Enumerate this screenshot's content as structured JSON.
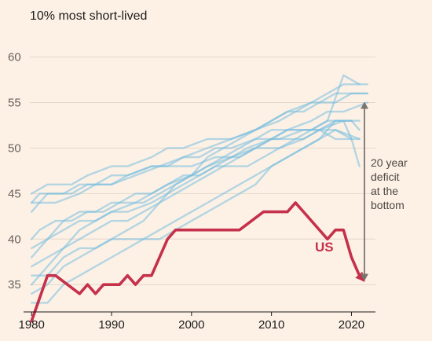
{
  "colors": {
    "background": "#fdf1e6",
    "us": "#c5304a",
    "peers": "#79bedf",
    "bracket": "#7a7470"
  },
  "chart_data": {
    "type": "line",
    "title": "",
    "subtitle": "10% most short-lived",
    "xlabel": "",
    "ylabel": "",
    "xlim": [
      1979,
      2023
    ],
    "ylim": [
      32,
      61
    ],
    "x_ticks": [
      1980,
      1990,
      2000,
      2010,
      2020
    ],
    "y_ticks": [
      35,
      40,
      45,
      50,
      55,
      60
    ],
    "grid": true,
    "annotation": {
      "text": "20 year\ndeficit\nat the\nbottom",
      "from_y": 35.5,
      "to_y": 55
    },
    "series": [
      {
        "name": "US",
        "highlight": true,
        "points": [
          [
            1980,
            31
          ],
          [
            1982,
            36
          ],
          [
            1983,
            36
          ],
          [
            1986,
            34
          ],
          [
            1987,
            35
          ],
          [
            1988,
            34
          ],
          [
            1989,
            35
          ],
          [
            1991,
            35
          ],
          [
            1992,
            36
          ],
          [
            1993,
            35
          ],
          [
            1994,
            36
          ],
          [
            1995,
            36
          ],
          [
            1997,
            40
          ],
          [
            1998,
            41
          ],
          [
            2006,
            41
          ],
          [
            2009,
            43
          ],
          [
            2012,
            43
          ],
          [
            2013,
            44
          ],
          [
            2017,
            40
          ],
          [
            2018,
            41
          ],
          [
            2019,
            41
          ],
          [
            2020,
            38
          ],
          [
            2021,
            36
          ],
          [
            2021.5,
            35.5
          ]
        ]
      },
      {
        "name": "",
        "points": [
          [
            1980,
            43
          ],
          [
            1982,
            45
          ],
          [
            1984,
            45
          ],
          [
            1986,
            46
          ],
          [
            1988,
            46
          ],
          [
            1990,
            47
          ],
          [
            1992,
            47
          ],
          [
            1995,
            48
          ],
          [
            1997,
            48
          ],
          [
            1999,
            49
          ],
          [
            2001,
            49
          ],
          [
            2003,
            50
          ],
          [
            2005,
            50
          ],
          [
            2008,
            51
          ],
          [
            2011,
            51
          ],
          [
            2014,
            52
          ],
          [
            2016,
            52
          ],
          [
            2018,
            51
          ],
          [
            2021,
            51
          ]
        ]
      },
      {
        "name": "",
        "points": [
          [
            1980,
            44
          ],
          [
            1981,
            45
          ],
          [
            1983,
            45
          ],
          [
            1985,
            45
          ],
          [
            1987,
            46
          ],
          [
            1990,
            46
          ],
          [
            1992,
            47
          ],
          [
            1995,
            48
          ],
          [
            1998,
            48
          ],
          [
            2000,
            48
          ],
          [
            2003,
            49
          ],
          [
            2006,
            49
          ],
          [
            2008,
            50
          ],
          [
            2011,
            50
          ],
          [
            2014,
            51
          ],
          [
            2016,
            52
          ],
          [
            2019,
            53
          ],
          [
            2020,
            53
          ],
          [
            2021,
            52
          ]
        ]
      },
      {
        "name": "",
        "points": [
          [
            1980,
            45
          ],
          [
            1982,
            46
          ],
          [
            1985,
            46
          ],
          [
            1987,
            47
          ],
          [
            1990,
            48
          ],
          [
            1992,
            48
          ],
          [
            1995,
            49
          ],
          [
            1997,
            50
          ],
          [
            1999,
            50
          ],
          [
            2002,
            51
          ],
          [
            2005,
            51
          ],
          [
            2008,
            52
          ],
          [
            2011,
            53
          ],
          [
            2013,
            54
          ],
          [
            2015,
            55
          ],
          [
            2018,
            55
          ],
          [
            2020,
            56
          ],
          [
            2022,
            56
          ]
        ]
      },
      {
        "name": "",
        "points": [
          [
            1980,
            44
          ],
          [
            1983,
            44
          ],
          [
            1986,
            45
          ],
          [
            1988,
            46
          ],
          [
            1990,
            46
          ],
          [
            1993,
            47
          ],
          [
            1996,
            48
          ],
          [
            1999,
            49
          ],
          [
            2002,
            50
          ],
          [
            2005,
            51
          ],
          [
            2008,
            52
          ],
          [
            2010,
            53
          ],
          [
            2012,
            54
          ],
          [
            2015,
            55
          ],
          [
            2017,
            56
          ],
          [
            2019,
            57
          ],
          [
            2021,
            57
          ],
          [
            2022,
            57
          ]
        ]
      },
      {
        "name": "",
        "points": [
          [
            1980,
            40
          ],
          [
            1981,
            41
          ],
          [
            1983,
            42
          ],
          [
            1985,
            42
          ],
          [
            1987,
            43
          ],
          [
            1989,
            43
          ],
          [
            1991,
            44
          ],
          [
            1993,
            45
          ],
          [
            1995,
            45
          ],
          [
            1997,
            46
          ],
          [
            1999,
            47
          ],
          [
            2001,
            47
          ],
          [
            2003,
            48
          ],
          [
            2005,
            49
          ],
          [
            2008,
            50
          ],
          [
            2010,
            51
          ],
          [
            2012,
            52
          ],
          [
            2015,
            52
          ],
          [
            2017,
            53
          ],
          [
            2019,
            53
          ],
          [
            2020,
            51
          ],
          [
            2021,
            48
          ]
        ]
      },
      {
        "name": "",
        "points": [
          [
            1980,
            39
          ],
          [
            1982,
            40
          ],
          [
            1984,
            41
          ],
          [
            1986,
            42
          ],
          [
            1988,
            42
          ],
          [
            1990,
            43
          ],
          [
            1993,
            44
          ],
          [
            1995,
            45
          ],
          [
            1997,
            46
          ],
          [
            2000,
            47
          ],
          [
            2002,
            48
          ],
          [
            2004,
            49
          ],
          [
            2006,
            50
          ],
          [
            2008,
            51
          ],
          [
            2010,
            52
          ],
          [
            2013,
            52
          ],
          [
            2016,
            52
          ],
          [
            2018,
            53
          ],
          [
            2021,
            53
          ]
        ]
      },
      {
        "name": "",
        "points": [
          [
            1980,
            38
          ],
          [
            1982,
            40
          ],
          [
            1984,
            42
          ],
          [
            1986,
            43
          ],
          [
            1988,
            43
          ],
          [
            1990,
            44
          ],
          [
            1992,
            44
          ],
          [
            1994,
            44
          ],
          [
            1996,
            45
          ],
          [
            1998,
            46
          ],
          [
            2000,
            47
          ],
          [
            2002,
            48
          ],
          [
            2005,
            49
          ],
          [
            2007,
            50
          ],
          [
            2010,
            51
          ],
          [
            2012,
            52
          ],
          [
            2015,
            53
          ],
          [
            2017,
            54
          ],
          [
            2019,
            54
          ],
          [
            2022,
            55
          ]
        ]
      },
      {
        "name": "",
        "points": [
          [
            1980,
            37
          ],
          [
            1982,
            38
          ],
          [
            1984,
            39
          ],
          [
            1986,
            40
          ],
          [
            1988,
            41
          ],
          [
            1990,
            42
          ],
          [
            1992,
            42
          ],
          [
            1994,
            43
          ],
          [
            1996,
            44
          ],
          [
            1998,
            46
          ],
          [
            2000,
            47
          ],
          [
            2002,
            49
          ],
          [
            2004,
            50
          ],
          [
            2006,
            51
          ],
          [
            2008,
            52
          ],
          [
            2010,
            53
          ],
          [
            2012,
            54
          ],
          [
            2014,
            54
          ],
          [
            2016,
            55
          ],
          [
            2018,
            56
          ],
          [
            2020,
            56
          ],
          [
            2022,
            56
          ]
        ]
      },
      {
        "name": "",
        "points": [
          [
            1980,
            35
          ],
          [
            1982,
            37
          ],
          [
            1984,
            39
          ],
          [
            1986,
            41
          ],
          [
            1988,
            42
          ],
          [
            1990,
            43
          ],
          [
            1992,
            43
          ],
          [
            1995,
            44
          ],
          [
            1997,
            45
          ],
          [
            1999,
            46
          ],
          [
            2001,
            47
          ],
          [
            2003,
            48
          ],
          [
            2005,
            48
          ],
          [
            2007,
            48
          ],
          [
            2009,
            49
          ],
          [
            2011,
            50
          ],
          [
            2013,
            51
          ],
          [
            2015,
            52
          ],
          [
            2017,
            53
          ],
          [
            2019,
            58
          ],
          [
            2021,
            57
          ]
        ]
      },
      {
        "name": "",
        "points": [
          [
            1980,
            34
          ],
          [
            1982,
            35
          ],
          [
            1984,
            37
          ],
          [
            1986,
            38
          ],
          [
            1988,
            39
          ],
          [
            1990,
            40
          ],
          [
            1992,
            41
          ],
          [
            1994,
            42
          ],
          [
            1996,
            44
          ],
          [
            1998,
            45
          ],
          [
            2000,
            46
          ],
          [
            2002,
            47
          ],
          [
            2004,
            48
          ],
          [
            2006,
            49
          ],
          [
            2008,
            50
          ],
          [
            2010,
            51
          ],
          [
            2012,
            51
          ],
          [
            2014,
            51
          ],
          [
            2016,
            52
          ],
          [
            2018,
            52
          ],
          [
            2021,
            51
          ]
        ]
      },
      {
        "name": "",
        "points": [
          [
            1980,
            36
          ],
          [
            1982,
            36
          ],
          [
            1984,
            38
          ],
          [
            1986,
            39
          ],
          [
            1988,
            39
          ],
          [
            1990,
            40
          ],
          [
            1992,
            40
          ],
          [
            1994,
            40
          ],
          [
            1996,
            40
          ],
          [
            1998,
            41
          ],
          [
            2000,
            42
          ],
          [
            2002,
            43
          ],
          [
            2004,
            44
          ],
          [
            2006,
            45
          ],
          [
            2008,
            46
          ],
          [
            2010,
            48
          ],
          [
            2012,
            49
          ],
          [
            2014,
            50
          ],
          [
            2016,
            51
          ],
          [
            2018,
            53
          ],
          [
            2020,
            53
          ]
        ]
      },
      {
        "name": "",
        "points": [
          [
            1980,
            33
          ],
          [
            1982,
            33
          ],
          [
            1984,
            35
          ],
          [
            1986,
            36
          ],
          [
            1988,
            37
          ],
          [
            1990,
            38
          ],
          [
            1992,
            39
          ],
          [
            1994,
            40
          ],
          [
            1996,
            41
          ],
          [
            1998,
            42
          ],
          [
            2000,
            43
          ],
          [
            2002,
            44
          ],
          [
            2004,
            45
          ],
          [
            2006,
            46
          ],
          [
            2008,
            47
          ],
          [
            2010,
            48
          ],
          [
            2012,
            49
          ],
          [
            2014,
            50
          ],
          [
            2016,
            51
          ],
          [
            2018,
            52
          ],
          [
            2020,
            51
          ]
        ]
      }
    ]
  }
}
